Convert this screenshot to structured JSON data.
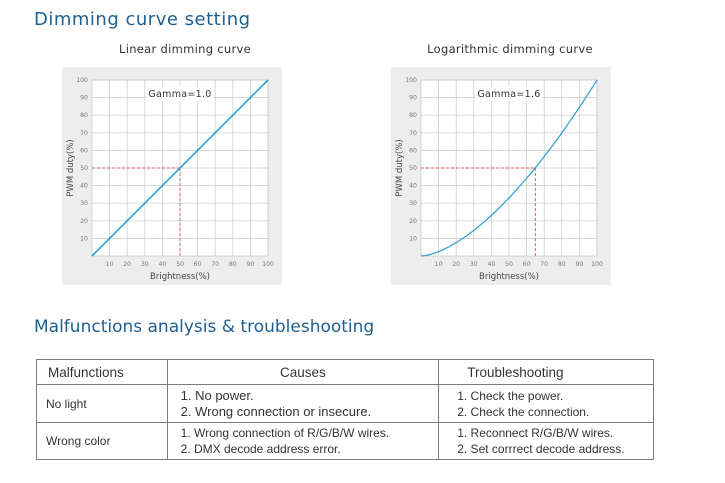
{
  "section1": {
    "title": "Dimming curve setting"
  },
  "chart_data": [
    {
      "type": "line",
      "title": "Linear dimming curve",
      "annotation": "Gamma=1.0",
      "gamma": 1.0,
      "xlabel": "Brightness(%)",
      "ylabel": "PWM duty(%)",
      "xlim": [
        0,
        100
      ],
      "ylim": [
        0,
        100
      ],
      "xticks": [
        "10",
        "20",
        "30",
        "40",
        "50",
        "60",
        "70",
        "80",
        "90",
        "100"
      ],
      "yticks": [
        "10",
        "20",
        "30",
        "40",
        "50",
        "60",
        "70",
        "80",
        "90",
        "100"
      ],
      "grid": true,
      "series": [
        {
          "x": [
            0,
            10,
            20,
            30,
            40,
            50,
            60,
            70,
            80,
            90,
            100
          ],
          "values": [
            0,
            10,
            20,
            30,
            40,
            50,
            60,
            70,
            80,
            90,
            100
          ]
        }
      ],
      "reference_point": {
        "x": 50,
        "y": 50
      },
      "colors": {
        "line": "#2a9fd0",
        "reference": "#e06060",
        "grid": "#c8c8c8"
      }
    },
    {
      "type": "line",
      "title": "Logarithmic dimming curve",
      "annotation": "Gamma=1.6",
      "gamma": 1.6,
      "xlabel": "Brightness(%)",
      "ylabel": "PWM duty(%)",
      "xlim": [
        0,
        100
      ],
      "ylim": [
        0,
        100
      ],
      "xticks": [
        "10",
        "20",
        "30",
        "40",
        "50",
        "60",
        "70",
        "80",
        "90",
        "100"
      ],
      "yticks": [
        "10",
        "20",
        "30",
        "40",
        "50",
        "60",
        "70",
        "80",
        "90",
        "100"
      ],
      "grid": true,
      "series": [
        {
          "x": [
            0,
            10,
            20,
            30,
            40,
            50,
            60,
            70,
            80,
            90,
            100
          ],
          "values": [
            0,
            2.5,
            7.6,
            14.6,
            23.1,
            33,
            44.2,
            56.5,
            70,
            84.5,
            100
          ]
        }
      ],
      "reference_point": {
        "x": 65,
        "y": 50
      },
      "colors": {
        "line": "#2a9fd0",
        "reference": "#e06060",
        "grid": "#c8c8c8"
      }
    }
  ],
  "section2": {
    "title": "Malfunctions analysis & troubleshooting"
  },
  "table": {
    "headers": [
      "Malfunctions",
      "Causes",
      "Troubleshooting"
    ],
    "rows": [
      {
        "malfunction": "No light",
        "causes": [
          "1. No power.",
          "2. Wrong connection or insecure."
        ],
        "troubleshooting": [
          "1. Check the power.",
          "2. Check the connection."
        ]
      },
      {
        "malfunction": "Wrong color",
        "causes": [
          "1. Wrong connection of R/G/B/W wires.",
          "2. DMX decode address error."
        ],
        "troubleshooting": [
          "1. Reconnect R/G/B/W wires.",
          "2. Set corrrect decode address."
        ]
      }
    ]
  }
}
